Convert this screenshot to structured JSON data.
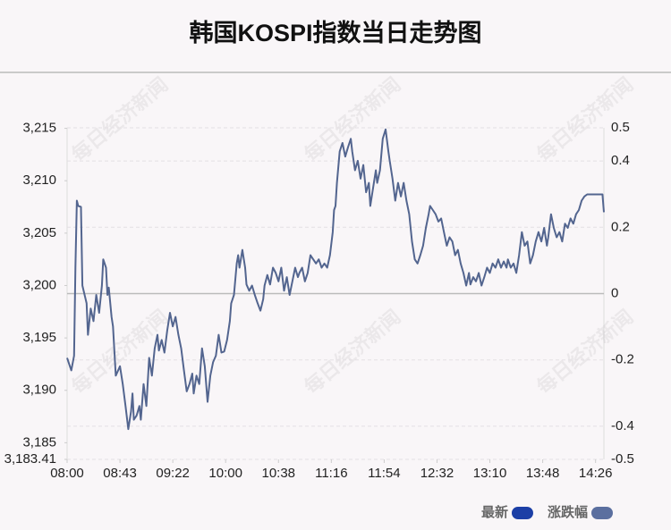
{
  "chart_data": {
    "type": "line",
    "title": "韩国KOSPI指数当日走势图",
    "watermark": "每日经济新闻",
    "x": [
      0,
      3,
      5,
      6,
      7,
      8,
      10,
      11,
      14,
      15,
      17,
      19,
      21,
      23,
      25,
      26,
      28,
      29,
      30,
      32,
      33,
      35,
      38,
      40,
      42,
      44,
      46,
      47,
      48,
      50,
      52,
      53,
      55,
      57,
      59,
      61,
      63,
      65,
      66,
      68,
      70,
      72,
      74,
      76,
      78,
      80,
      82,
      84,
      86,
      88,
      90,
      91,
      93,
      95,
      97,
      99,
      101,
      103,
      105,
      107,
      109,
      111,
      113,
      115,
      117,
      118,
      120,
      122,
      123,
      124,
      126,
      128,
      129,
      131,
      133,
      135,
      137,
      139,
      141,
      142,
      144,
      146,
      148,
      150,
      152,
      154,
      156,
      158,
      160,
      162,
      164,
      166,
      167,
      169,
      171,
      173,
      175,
      177,
      179,
      181,
      183,
      185,
      187,
      189,
      191,
      192,
      193,
      194,
      196,
      198,
      200,
      202,
      204,
      205,
      207,
      209,
      211,
      213,
      215,
      217,
      218,
      220,
      222,
      223,
      225,
      227,
      229,
      231,
      232,
      234,
      236,
      238,
      240,
      242,
      244,
      246,
      248,
      250,
      252,
      254,
      256,
      258,
      260,
      261,
      263,
      265,
      267,
      269,
      271,
      273,
      275,
      277,
      279,
      281,
      283,
      285,
      287,
      289,
      290,
      292,
      294,
      296,
      298,
      300,
      302,
      304,
      306,
      308,
      310,
      312,
      314,
      316,
      317,
      319,
      321,
      323,
      325,
      327,
      329,
      331,
      333,
      335,
      337,
      339,
      341,
      343,
      345,
      346,
      348,
      350,
      352,
      354,
      356,
      358,
      360,
      362,
      364,
      366,
      368,
      370,
      372,
      374,
      377,
      380,
      383,
      385,
      386
    ],
    "series": [
      {
        "name": "最新",
        "color": "#53658f",
        "values": [
          3193.1,
          3191.9,
          3193.3,
          3201.7,
          3208.1,
          3207.6,
          3207.5,
          3200.0,
          3198.3,
          3195.3,
          3197.8,
          3196.6,
          3199.1,
          3197.4,
          3200.0,
          3202.5,
          3201.7,
          3199.1,
          3199.8,
          3197.0,
          3196.1,
          3191.4,
          3192.3,
          3190.6,
          3188.5,
          3186.3,
          3188.0,
          3189.7,
          3187.2,
          3187.6,
          3188.5,
          3187.2,
          3190.6,
          3188.5,
          3193.1,
          3191.4,
          3194.0,
          3195.3,
          3193.8,
          3194.8,
          3193.6,
          3195.7,
          3197.4,
          3196.1,
          3197.0,
          3195.3,
          3194.0,
          3191.9,
          3189.9,
          3190.6,
          3191.6,
          3189.7,
          3191.4,
          3190.6,
          3194.0,
          3192.3,
          3188.9,
          3191.4,
          3192.7,
          3193.3,
          3195.3,
          3193.6,
          3193.7,
          3194.8,
          3196.6,
          3198.3,
          3199.1,
          3202.1,
          3202.9,
          3201.7,
          3203.4,
          3201.7,
          3200.1,
          3199.5,
          3200.0,
          3199.1,
          3198.3,
          3197.6,
          3198.7,
          3200.0,
          3201.0,
          3200.1,
          3201.7,
          3201.2,
          3200.4,
          3201.7,
          3199.5,
          3200.8,
          3199.1,
          3200.4,
          3201.7,
          3200.8,
          3201.2,
          3201.7,
          3200.4,
          3201.2,
          3202.9,
          3202.5,
          3202.1,
          3202.5,
          3201.7,
          3202.1,
          3201.7,
          3202.9,
          3205.1,
          3207.2,
          3207.6,
          3209.8,
          3212.8,
          3213.6,
          3212.3,
          3213.2,
          3214.0,
          3212.8,
          3211.0,
          3211.9,
          3210.2,
          3211.5,
          3208.9,
          3209.8,
          3207.6,
          3209.3,
          3211.0,
          3209.8,
          3211.0,
          3214.0,
          3214.9,
          3212.8,
          3211.9,
          3210.2,
          3208.1,
          3209.8,
          3208.5,
          3209.8,
          3208.1,
          3206.8,
          3204.2,
          3202.5,
          3202.1,
          3202.9,
          3203.8,
          3205.5,
          3206.8,
          3207.6,
          3207.2,
          3206.8,
          3206.1,
          3206.4,
          3205.1,
          3203.8,
          3204.6,
          3204.2,
          3202.9,
          3203.4,
          3202.1,
          3201.2,
          3200.0,
          3201.2,
          3200.1,
          3200.8,
          3200.4,
          3201.2,
          3200.0,
          3200.8,
          3201.7,
          3201.2,
          3202.1,
          3201.7,
          3202.5,
          3201.7,
          3202.3,
          3201.7,
          3202.5,
          3201.7,
          3202.1,
          3201.2,
          3202.9,
          3205.1,
          3203.8,
          3204.2,
          3202.1,
          3202.9,
          3204.2,
          3205.1,
          3204.2,
          3205.5,
          3203.8,
          3204.6,
          3206.8,
          3205.5,
          3204.6,
          3205.1,
          3204.2,
          3205.9,
          3205.5,
          3206.4,
          3205.9,
          3206.8,
          3207.2,
          3208.1,
          3208.5,
          3208.7,
          3208.7,
          3208.7,
          3208.7,
          3208.7,
          3207.0
        ]
      }
    ],
    "legend": [
      {
        "name": "最新",
        "color": "#1c3fa6"
      },
      {
        "name": "涨跌幅",
        "color": "#5b6f9f"
      }
    ],
    "legend_position": "bottom-right",
    "xlim": [
      0,
      386
    ],
    "xticks": [
      {
        "value": 0,
        "label": "08:00"
      },
      {
        "value": 38,
        "label": "08:43"
      },
      {
        "value": 76,
        "label": "09:22"
      },
      {
        "value": 114,
        "label": "10:00"
      },
      {
        "value": 152,
        "label": "10:38"
      },
      {
        "value": 190,
        "label": "11:16"
      },
      {
        "value": 228,
        "label": "11:54"
      },
      {
        "value": 266,
        "label": "12:32"
      },
      {
        "value": 304,
        "label": "13:10"
      },
      {
        "value": 342,
        "label": "13:48"
      },
      {
        "value": 380,
        "label": "14:26"
      }
    ],
    "ylim": [
      3183.41,
      3215.05
    ],
    "yticks": [
      {
        "value": 3215,
        "label": "3,215"
      },
      {
        "value": 3210,
        "label": "3,210"
      },
      {
        "value": 3205,
        "label": "3,205"
      },
      {
        "value": 3200,
        "label": "3,200"
      },
      {
        "value": 3195,
        "label": "3,195"
      },
      {
        "value": 3190,
        "label": "3,190"
      },
      {
        "value": 3185,
        "label": "3,185"
      },
      {
        "value": 3183.41,
        "label": "3,183.41"
      }
    ],
    "y2lim": [
      -0.5,
      0.5
    ],
    "y2ticks": [
      0.5,
      0.4,
      0.2,
      0,
      -0.2,
      -0.4,
      -0.5
    ],
    "grid": true
  }
}
